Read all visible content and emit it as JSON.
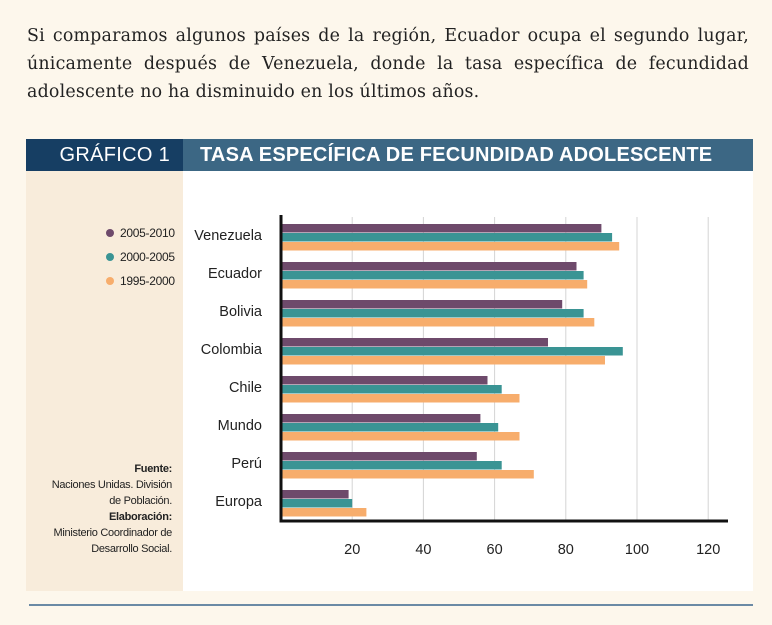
{
  "intro_text": "Si comparamos algunos países de la región, Ecuador ocupa el segundo lugar, únicamente después de Venezuela, donde la tasa específica de fecundidad adolescente no ha disminuido en los últimos años.",
  "figure": {
    "label": "GRÁFICO 1",
    "title": "TASA ESPECÍFICA DE FECUNDIDAD ADOLESCENTE"
  },
  "legend": [
    {
      "name": "2005-2010",
      "color": "#6e4a6b"
    },
    {
      "name": "2000-2005",
      "color": "#3a9494"
    },
    {
      "name": "1995-2000",
      "color": "#f7ad6c"
    }
  ],
  "source": {
    "fuente_label": "Fuente:",
    "fuente_line1": "Naciones Unidas. División",
    "fuente_line2": "de Población.",
    "elaboracion_label": "Elaboración:",
    "elaboracion_line1": "Ministerio Coordinador de",
    "elaboracion_line2": "Desarrollo Social."
  },
  "chart_data": {
    "type": "bar",
    "orientation": "horizontal",
    "title": "TASA ESPECÍFICA DE FECUNDIDAD ADOLESCENTE",
    "categories": [
      "Venezuela",
      "Ecuador",
      "Bolivia",
      "Colombia",
      "Chile",
      "Mundo",
      "Perú",
      "Europa"
    ],
    "series": [
      {
        "name": "2005-2010",
        "color": "#6e4a6b",
        "values": [
          90,
          83,
          79,
          75,
          58,
          56,
          55,
          19
        ]
      },
      {
        "name": "2000-2005",
        "color": "#3a9494",
        "values": [
          93,
          85,
          85,
          96,
          62,
          61,
          62,
          20
        ]
      },
      {
        "name": "1995-2000",
        "color": "#f7ad6c",
        "values": [
          95,
          86,
          88,
          91,
          67,
          67,
          71,
          24
        ]
      }
    ],
    "xticks": [
      20,
      40,
      60,
      80,
      100,
      120
    ],
    "xlim": [
      0,
      125
    ],
    "grid": true,
    "legend_position": "left"
  }
}
